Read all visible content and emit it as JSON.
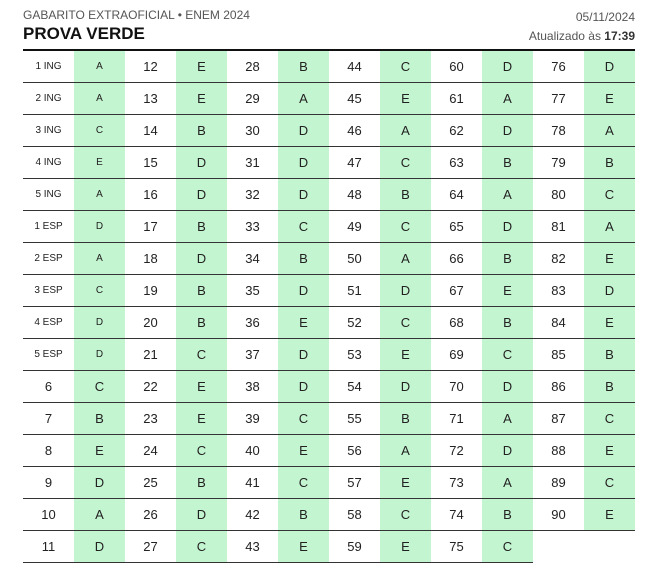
{
  "header": {
    "subtitle": "GABARITO EXTRAOFICIAL • ENEM 2024",
    "title": "PROVA VERDE",
    "date": "05/11/2024",
    "updated_prefix": "Atualizado às",
    "updated_time": "17:39"
  },
  "colors": {
    "answer_bg": "#c4f5d1",
    "rule": "#111111"
  },
  "rows": [
    [
      [
        "1 ING",
        "A"
      ],
      [
        "12",
        "E"
      ],
      [
        "28",
        "B"
      ],
      [
        "44",
        "C"
      ],
      [
        "60",
        "D"
      ],
      [
        "76",
        "D"
      ]
    ],
    [
      [
        "2 ING",
        "A"
      ],
      [
        "13",
        "E"
      ],
      [
        "29",
        "A"
      ],
      [
        "45",
        "E"
      ],
      [
        "61",
        "A"
      ],
      [
        "77",
        "E"
      ]
    ],
    [
      [
        "3 ING",
        "C"
      ],
      [
        "14",
        "B"
      ],
      [
        "30",
        "D"
      ],
      [
        "46",
        "A"
      ],
      [
        "62",
        "D"
      ],
      [
        "78",
        "A"
      ]
    ],
    [
      [
        "4 ING",
        "E"
      ],
      [
        "15",
        "D"
      ],
      [
        "31",
        "D"
      ],
      [
        "47",
        "C"
      ],
      [
        "63",
        "B"
      ],
      [
        "79",
        "B"
      ]
    ],
    [
      [
        "5 ING",
        "A"
      ],
      [
        "16",
        "D"
      ],
      [
        "32",
        "D"
      ],
      [
        "48",
        "B"
      ],
      [
        "64",
        "A"
      ],
      [
        "80",
        "C"
      ]
    ],
    [
      [
        "1 ESP",
        "D"
      ],
      [
        "17",
        "B"
      ],
      [
        "33",
        "C"
      ],
      [
        "49",
        "C"
      ],
      [
        "65",
        "D"
      ],
      [
        "81",
        "A"
      ]
    ],
    [
      [
        "2 ESP",
        "A"
      ],
      [
        "18",
        "D"
      ],
      [
        "34",
        "B"
      ],
      [
        "50",
        "A"
      ],
      [
        "66",
        "B"
      ],
      [
        "82",
        "E"
      ]
    ],
    [
      [
        "3 ESP",
        "C"
      ],
      [
        "19",
        "B"
      ],
      [
        "35",
        "D"
      ],
      [
        "51",
        "D"
      ],
      [
        "67",
        "E"
      ],
      [
        "83",
        "D"
      ]
    ],
    [
      [
        "4 ESP",
        "D"
      ],
      [
        "20",
        "B"
      ],
      [
        "36",
        "E"
      ],
      [
        "52",
        "C"
      ],
      [
        "68",
        "B"
      ],
      [
        "84",
        "E"
      ]
    ],
    [
      [
        "5 ESP",
        "D"
      ],
      [
        "21",
        "C"
      ],
      [
        "37",
        "D"
      ],
      [
        "53",
        "E"
      ],
      [
        "69",
        "C"
      ],
      [
        "85",
        "B"
      ]
    ],
    [
      [
        "6",
        "C"
      ],
      [
        "22",
        "E"
      ],
      [
        "38",
        "D"
      ],
      [
        "54",
        "D"
      ],
      [
        "70",
        "D"
      ],
      [
        "86",
        "B"
      ]
    ],
    [
      [
        "7",
        "B"
      ],
      [
        "23",
        "E"
      ],
      [
        "39",
        "C"
      ],
      [
        "55",
        "B"
      ],
      [
        "71",
        "A"
      ],
      [
        "87",
        "C"
      ]
    ],
    [
      [
        "8",
        "E"
      ],
      [
        "24",
        "C"
      ],
      [
        "40",
        "E"
      ],
      [
        "56",
        "A"
      ],
      [
        "72",
        "D"
      ],
      [
        "88",
        "E"
      ]
    ],
    [
      [
        "9",
        "D"
      ],
      [
        "25",
        "B"
      ],
      [
        "41",
        "C"
      ],
      [
        "57",
        "E"
      ],
      [
        "73",
        "A"
      ],
      [
        "89",
        "C"
      ]
    ],
    [
      [
        "10",
        "A"
      ],
      [
        "26",
        "D"
      ],
      [
        "42",
        "B"
      ],
      [
        "58",
        "C"
      ],
      [
        "74",
        "B"
      ],
      [
        "90",
        "E"
      ]
    ],
    [
      [
        "11",
        "D"
      ],
      [
        "27",
        "C"
      ],
      [
        "43",
        "E"
      ],
      [
        "59",
        "E"
      ],
      [
        "75",
        "C"
      ]
    ]
  ]
}
